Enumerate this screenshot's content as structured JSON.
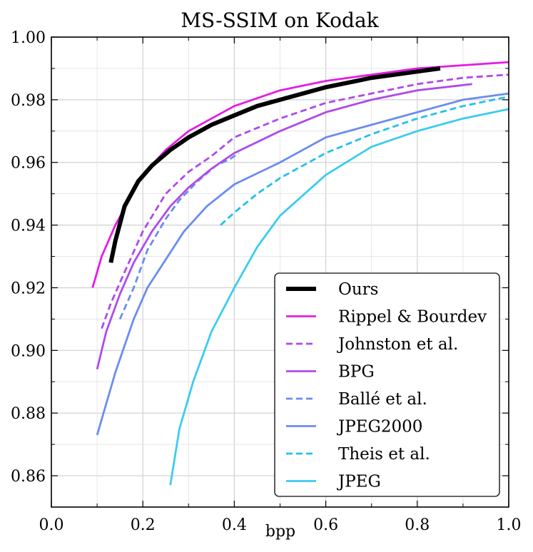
{
  "chart_data": {
    "type": "line",
    "title": "MS-SSIM on Kodak",
    "xlabel": "bpp",
    "ylabel": "",
    "xlim": [
      0.0,
      1.0
    ],
    "ylim": [
      0.85,
      1.0
    ],
    "grid": true,
    "legend_position": "bottom-right",
    "x_ticks": [
      "0.0",
      "0.2",
      "0.4",
      "0.6",
      "0.8",
      "1.0"
    ],
    "y_ticks": [
      "0.86",
      "0.88",
      "0.90",
      "0.92",
      "0.94",
      "0.96",
      "0.98",
      "1.00"
    ],
    "series": [
      {
        "name": "Ours",
        "color": "#000000",
        "dash": "solid",
        "width": "thick",
        "x": [
          0.13,
          0.14,
          0.16,
          0.19,
          0.22,
          0.26,
          0.3,
          0.35,
          0.4,
          0.45,
          0.5,
          0.6,
          0.7,
          0.8,
          0.85
        ],
        "y": [
          0.928,
          0.935,
          0.946,
          0.954,
          0.959,
          0.964,
          0.968,
          0.972,
          0.975,
          0.978,
          0.98,
          0.984,
          0.987,
          0.989,
          0.99
        ]
      },
      {
        "name": "Rippel & Bourdev",
        "color": "#e51be5",
        "dash": "solid",
        "x": [
          0.09,
          0.11,
          0.14,
          0.17,
          0.2,
          0.25,
          0.3,
          0.4,
          0.5,
          0.6,
          0.7,
          0.8,
          0.9,
          1.0
        ],
        "y": [
          0.92,
          0.93,
          0.94,
          0.948,
          0.956,
          0.964,
          0.97,
          0.978,
          0.983,
          0.986,
          0.988,
          0.99,
          0.991,
          0.992
        ]
      },
      {
        "name": "Johnston et al.",
        "color": "#ae4be8",
        "dash": "dashed",
        "x": [
          0.11,
          0.13,
          0.16,
          0.2,
          0.25,
          0.3,
          0.35,
          0.4,
          0.5,
          0.6,
          0.7,
          0.8,
          0.9,
          1.0
        ],
        "y": [
          0.907,
          0.915,
          0.925,
          0.938,
          0.95,
          0.957,
          0.962,
          0.968,
          0.974,
          0.979,
          0.982,
          0.985,
          0.987,
          0.988
        ]
      },
      {
        "name": "BPG",
        "color": "#ae4be8",
        "dash": "solid",
        "x": [
          0.1,
          0.12,
          0.15,
          0.18,
          0.22,
          0.26,
          0.3,
          0.35,
          0.4,
          0.5,
          0.6,
          0.7,
          0.8,
          0.92
        ],
        "y": [
          0.894,
          0.906,
          0.918,
          0.928,
          0.938,
          0.946,
          0.952,
          0.958,
          0.963,
          0.97,
          0.976,
          0.98,
          0.983,
          0.985
        ]
      },
      {
        "name": "Ballé et al.",
        "color": "#6b8cf0",
        "dash": "dashed",
        "x": [
          0.15,
          0.18,
          0.21,
          0.25,
          0.28,
          0.32,
          0.36,
          0.39,
          0.41
        ],
        "y": [
          0.91,
          0.92,
          0.932,
          0.942,
          0.948,
          0.954,
          0.959,
          0.961,
          0.963
        ]
      },
      {
        "name": "JPEG2000",
        "color": "#6b8cf0",
        "dash": "solid",
        "x": [
          0.1,
          0.14,
          0.18,
          0.21,
          0.25,
          0.29,
          0.34,
          0.4,
          0.5,
          0.6,
          0.7,
          0.8,
          0.9,
          1.0
        ],
        "y": [
          0.873,
          0.893,
          0.91,
          0.92,
          0.929,
          0.938,
          0.946,
          0.953,
          0.96,
          0.968,
          0.972,
          0.976,
          0.98,
          0.982
        ]
      },
      {
        "name": "Theis et al.",
        "color": "#22c1e8",
        "dash": "dashed",
        "x": [
          0.37,
          0.4,
          0.45,
          0.5,
          0.6,
          0.7,
          0.8,
          0.9,
          1.0
        ],
        "y": [
          0.94,
          0.944,
          0.95,
          0.955,
          0.963,
          0.969,
          0.974,
          0.978,
          0.981
        ]
      },
      {
        "name": "JPEG",
        "color": "#3ccbf0",
        "dash": "solid",
        "x": [
          0.26,
          0.28,
          0.31,
          0.35,
          0.4,
          0.45,
          0.5,
          0.6,
          0.7,
          0.8,
          0.9,
          1.0
        ],
        "y": [
          0.857,
          0.875,
          0.89,
          0.906,
          0.92,
          0.933,
          0.943,
          0.956,
          0.965,
          0.97,
          0.974,
          0.977
        ]
      }
    ]
  }
}
